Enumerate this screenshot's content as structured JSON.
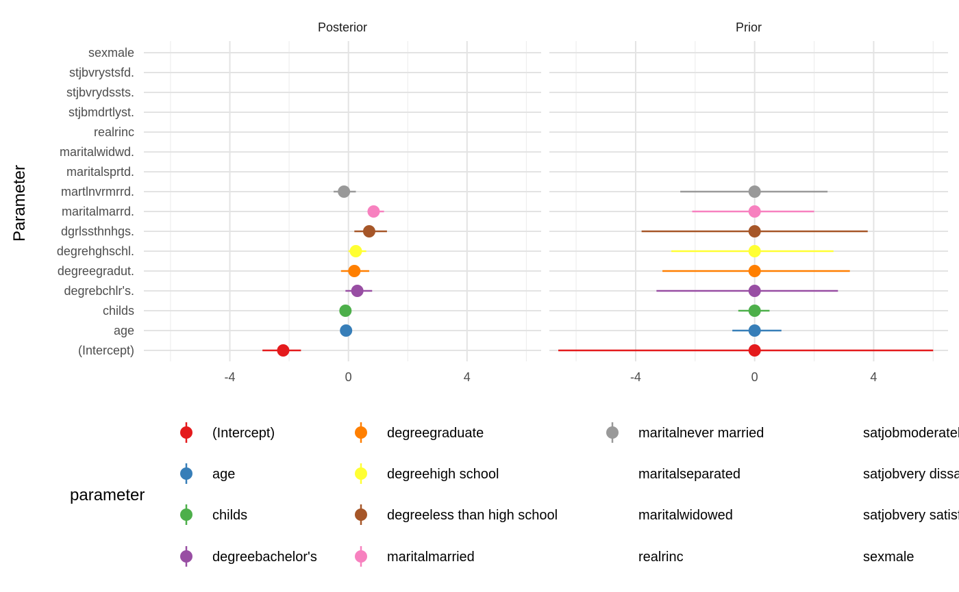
{
  "chart_data": {
    "type": "point-range",
    "ylabel": "Parameter",
    "legend_title": "parameter",
    "x_ticks": [
      "-4",
      "0",
      "4"
    ],
    "x_tick_values": [
      -4,
      0,
      4
    ],
    "xlim": [
      -6.9,
      6.5
    ],
    "panels": [
      {
        "title": "Posterior",
        "series": [
          {
            "row": "(Intercept)",
            "estimate": -2.2,
            "lower": -2.9,
            "upper": -1.6,
            "color": "#E41A1C"
          },
          {
            "row": "age",
            "estimate": -0.08,
            "lower": -0.12,
            "upper": -0.04,
            "color": "#377EB8"
          },
          {
            "row": "childs",
            "estimate": -0.1,
            "lower": -0.14,
            "upper": -0.06,
            "color": "#4DAF4A"
          },
          {
            "row": "degrebchlr's.",
            "estimate": 0.3,
            "lower": -0.1,
            "upper": 0.8,
            "color": "#984EA3"
          },
          {
            "row": "degreegradut.",
            "estimate": 0.2,
            "lower": -0.25,
            "upper": 0.7,
            "color": "#FF7F00"
          },
          {
            "row": "degrehghschl.",
            "estimate": 0.25,
            "lower": 0.0,
            "upper": 0.6,
            "color": "#FFFF33"
          },
          {
            "row": "dgrlssthnhgs.",
            "estimate": 0.7,
            "lower": 0.2,
            "upper": 1.3,
            "color": "#A65628"
          },
          {
            "row": "maritalmarrd.",
            "estimate": 0.85,
            "lower": 0.65,
            "upper": 1.2,
            "color": "#F781BF"
          },
          {
            "row": "martlnvrmrrd.",
            "estimate": -0.15,
            "lower": -0.5,
            "upper": 0.25,
            "color": "#999999"
          }
        ]
      },
      {
        "title": "Prior",
        "series": [
          {
            "row": "(Intercept)",
            "estimate": 0.0,
            "lower": -6.6,
            "upper": 6.0,
            "color": "#E41A1C"
          },
          {
            "row": "age",
            "estimate": 0.0,
            "lower": -0.75,
            "upper": 0.9,
            "color": "#377EB8"
          },
          {
            "row": "childs",
            "estimate": 0.0,
            "lower": -0.55,
            "upper": 0.5,
            "color": "#4DAF4A"
          },
          {
            "row": "degrebchlr's.",
            "estimate": 0.0,
            "lower": -3.3,
            "upper": 2.8,
            "color": "#984EA3"
          },
          {
            "row": "degreegradut.",
            "estimate": 0.0,
            "lower": -3.1,
            "upper": 3.2,
            "color": "#FF7F00"
          },
          {
            "row": "degrehghschl.",
            "estimate": 0.0,
            "lower": -2.8,
            "upper": 2.65,
            "color": "#FFFF33"
          },
          {
            "row": "dgrlssthnhgs.",
            "estimate": 0.0,
            "lower": -3.8,
            "upper": 3.8,
            "color": "#A65628"
          },
          {
            "row": "maritalmarrd.",
            "estimate": 0.0,
            "lower": -2.1,
            "upper": 2.0,
            "color": "#F781BF"
          },
          {
            "row": "martlnvrmrrd.",
            "estimate": 0.0,
            "lower": -2.5,
            "upper": 2.45,
            "color": "#999999"
          }
        ]
      }
    ],
    "rows": [
      "(Intercept)",
      "age",
      "childs",
      "degrebchlr's.",
      "degreegradut.",
      "degrehghschl.",
      "dgrlssthnhgs.",
      "maritalmarrd.",
      "martlnvrmrrd.",
      "maritalsprtd.",
      "maritalwidwd.",
      "realrinc",
      "stjbmdrtlyst.",
      "stjbvrydssts.",
      "stjbvrystsfd.",
      "sexmale"
    ],
    "legend": [
      {
        "label": "(Intercept)",
        "color": "#E41A1C"
      },
      {
        "label": "age",
        "color": "#377EB8"
      },
      {
        "label": "childs",
        "color": "#4DAF4A"
      },
      {
        "label": "degreebachelor's",
        "color": "#984EA3"
      },
      {
        "label": "degreegraduate",
        "color": "#FF7F00"
      },
      {
        "label": "degreehigh school",
        "color": "#FFFF33"
      },
      {
        "label": "degreeless than high school",
        "color": "#A65628"
      },
      {
        "label": "maritalmarried",
        "color": "#F781BF"
      },
      {
        "label": "maritalnever married",
        "color": "#999999"
      },
      {
        "label": "maritalseparated",
        "color": null
      },
      {
        "label": "maritalwidowed",
        "color": null
      },
      {
        "label": "realrinc",
        "color": null
      },
      {
        "label": "satjobmoderately",
        "color": null
      },
      {
        "label": "satjobvery dissati",
        "color": null
      },
      {
        "label": "satjobvery satisfie",
        "color": null
      },
      {
        "label": "sexmale",
        "color": null
      }
    ]
  }
}
